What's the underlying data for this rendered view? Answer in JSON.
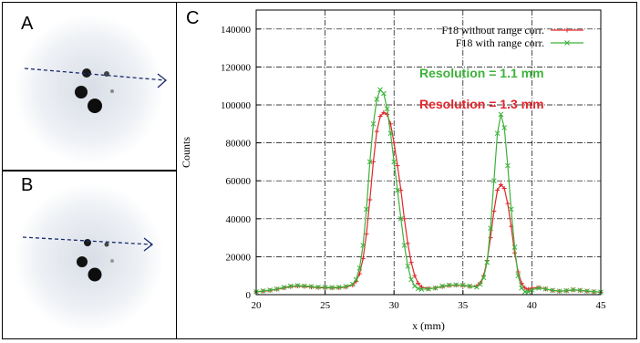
{
  "panels": {
    "a": {
      "label": "A"
    },
    "b": {
      "label": "B"
    },
    "c": {
      "label": "C"
    }
  },
  "colors": {
    "red": "#e2252b",
    "green": "#3db23b",
    "arrow": "#1a2a6c"
  },
  "chart_data": {
    "type": "line",
    "xlabel": "x (mm)",
    "ylabel": "Counts",
    "xlim": [
      20,
      45
    ],
    "ylim": [
      0,
      150000
    ],
    "xticks": [
      20,
      25,
      30,
      35,
      40,
      45
    ],
    "yticks": [
      0,
      20000,
      40000,
      60000,
      80000,
      100000,
      120000,
      140000
    ],
    "grid": true,
    "legend_position": "top-right",
    "annotations": [
      {
        "text": "Resolution = 1.1 mm",
        "color": "#3db23b"
      },
      {
        "text": "Resolution = 1.3 mm",
        "color": "#e2252b"
      }
    ],
    "series": [
      {
        "name": "F18 without range corr.",
        "color": "#e2252b",
        "marker": "+",
        "x": [
          20,
          20.5,
          21,
          21.5,
          22,
          22.5,
          23,
          23.5,
          24,
          24.5,
          25,
          25.5,
          26,
          26.5,
          27,
          27.25,
          27.5,
          27.75,
          28,
          28.25,
          28.5,
          28.75,
          29,
          29.25,
          29.5,
          29.75,
          30,
          30.25,
          30.5,
          30.75,
          31,
          31.25,
          31.5,
          31.75,
          32,
          32.5,
          33,
          33.5,
          34,
          34.5,
          35,
          35.5,
          36,
          36.25,
          36.5,
          36.75,
          37,
          37.25,
          37.5,
          37.75,
          38,
          38.25,
          38.5,
          38.75,
          39,
          39.25,
          39.5,
          39.75,
          40,
          40.5,
          41,
          41.5,
          42,
          42.5,
          43,
          43.5,
          44,
          44.5,
          45
        ],
        "y": [
          1500,
          1800,
          2200,
          2800,
          3500,
          4200,
          4500,
          4300,
          4000,
          3700,
          3600,
          3500,
          3600,
          4000,
          5000,
          7000,
          11000,
          19000,
          32000,
          50000,
          70000,
          86000,
          94000,
          96000,
          95000,
          90000,
          80000,
          68000,
          55000,
          40000,
          27000,
          17000,
          10000,
          6000,
          4000,
          3200,
          3500,
          4200,
          4800,
          5000,
          4800,
          4300,
          4500,
          6000,
          10000,
          18000,
          30000,
          44000,
          55000,
          58000,
          56000,
          48000,
          36000,
          22000,
          12000,
          6000,
          3500,
          2800,
          3500,
          3800,
          3000,
          2200,
          1800,
          2000,
          2500,
          2200,
          1800,
          1500,
          1300
        ]
      },
      {
        "name": "F18 with range corr.",
        "color": "#3db23b",
        "marker": "x",
        "x": [
          20,
          20.5,
          21,
          21.5,
          22,
          22.5,
          23,
          23.5,
          24,
          24.5,
          25,
          25.5,
          26,
          26.5,
          27,
          27.25,
          27.5,
          27.75,
          28,
          28.25,
          28.5,
          28.75,
          29,
          29.25,
          29.5,
          29.75,
          30,
          30.25,
          30.5,
          30.75,
          31,
          31.25,
          31.5,
          31.75,
          32,
          32.5,
          33,
          33.5,
          34,
          34.5,
          35,
          35.5,
          36,
          36.25,
          36.5,
          36.75,
          37,
          37.25,
          37.5,
          37.75,
          38,
          38.25,
          38.5,
          38.75,
          39,
          39.25,
          39.5,
          39.75,
          40,
          40.5,
          41,
          41.5,
          42,
          42.5,
          43,
          43.5,
          44,
          44.5,
          45
        ],
        "y": [
          1500,
          2000,
          2400,
          3000,
          3800,
          4500,
          4800,
          4600,
          4300,
          4000,
          3900,
          3800,
          3900,
          4300,
          5500,
          8000,
          14000,
          26000,
          45000,
          70000,
          90000,
          103000,
          108000,
          106000,
          98000,
          85000,
          70000,
          55000,
          40000,
          26000,
          15000,
          8000,
          4500,
          3200,
          2800,
          3000,
          3500,
          4500,
          5000,
          5200,
          5000,
          4500,
          4000,
          5500,
          9000,
          17000,
          35000,
          60000,
          85000,
          95000,
          88000,
          68000,
          45000,
          25000,
          10000,
          3500,
          1500,
          1500,
          2500,
          3500,
          3000,
          2300,
          1900,
          2100,
          2600,
          2300,
          1900,
          1600,
          1400
        ]
      }
    ]
  }
}
